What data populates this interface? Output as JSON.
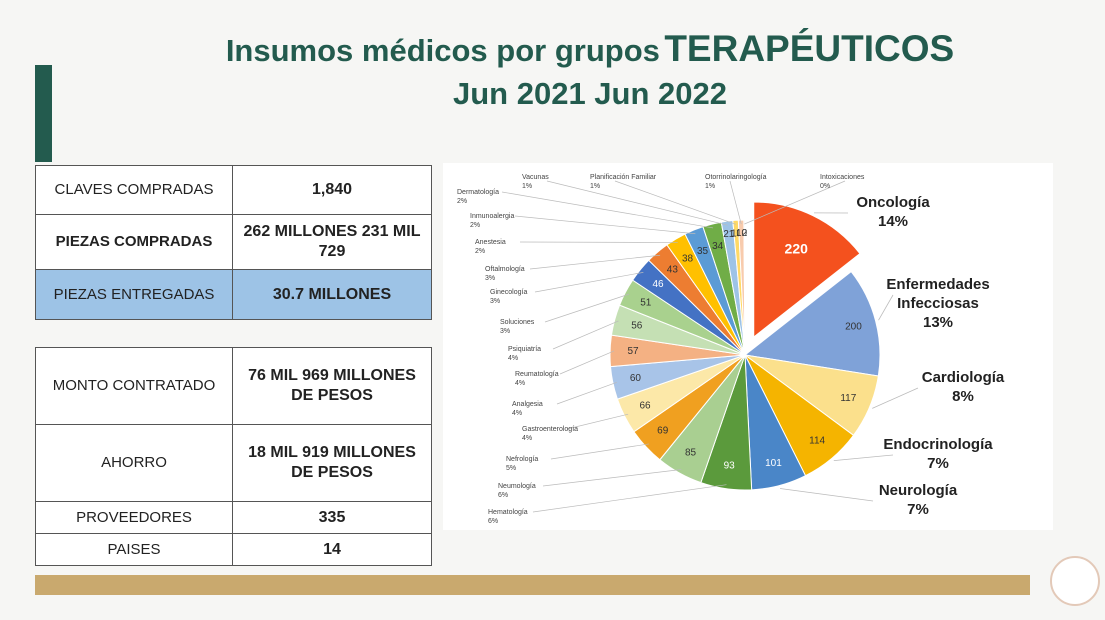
{
  "header": {
    "title_lead": "Insumos médicos por grupos",
    "title_emphasis": "TERAPÉUTICOS",
    "subtitle": "Jun 2021 Jun 2022"
  },
  "table": {
    "rows": [
      [
        "CLAVES COMPRADAS",
        "1,840"
      ],
      [
        "PIEZAS COMPRADAS",
        "262 MILLONES 231 MIL 729"
      ],
      [
        "PIEZAS ENTREGADAS",
        "30.7 MILLONES"
      ]
    ]
  },
  "table2": {
    "rows": [
      [
        "MONTO CONTRATADO",
        "76 MIL 969 MILLONES DE PESOS"
      ],
      [
        "AHORRO",
        "18 MIL 919 MILLONES DE PESOS"
      ],
      [
        "PROVEEDORES",
        "335"
      ],
      [
        "PAISES",
        "14"
      ]
    ]
  },
  "chart_data": {
    "type": "pie",
    "categories": [
      "Oncología",
      "Enfermedades Infecciosas",
      "Cardiología",
      "Endocrinología",
      "Neurología",
      "Hematología",
      "Neumología",
      "Nefrología",
      "Gastroenterología",
      "Analgesia",
      "Reumatología",
      "Psiquiatría",
      "Soluciones",
      "Ginecología",
      "Oftalmología",
      "Anestesia",
      "Inmunoalergia",
      "Dermatología",
      "Vacunas",
      "Planificación Familiar",
      "Otorrinolaringología",
      "Intoxicaciones"
    ],
    "values": [
      220,
      200,
      117,
      114,
      101,
      93,
      85,
      69,
      66,
      60,
      57,
      56,
      51,
      46,
      43,
      38,
      35,
      34,
      21,
      10,
      10,
      2
    ],
    "shares": [
      "14%",
      "13%",
      "8%",
      "7%",
      "7%",
      "6%",
      "6%",
      "5%",
      "4%",
      "4%",
      "4%",
      "4%",
      "3%",
      "3%",
      "3%",
      "2%",
      "2%",
      "2%",
      "1%",
      "1%",
      "1%",
      "0%"
    ],
    "colors": [
      "#f4511e",
      "#7fa2d8",
      "#fbe08c",
      "#f5b400",
      "#4a86c8",
      "#5b9a3c",
      "#a9cf91",
      "#f0a020",
      "#fce8a8",
      "#a8c4e8",
      "#f4b183",
      "#c5e0b4",
      "#a9d18e",
      "#4472c4",
      "#ed7d31",
      "#ffc000",
      "#5b9bd5",
      "#70ad47",
      "#9dc3e6",
      "#ffd966",
      "#f8cbad",
      "#c9c9c9"
    ]
  }
}
